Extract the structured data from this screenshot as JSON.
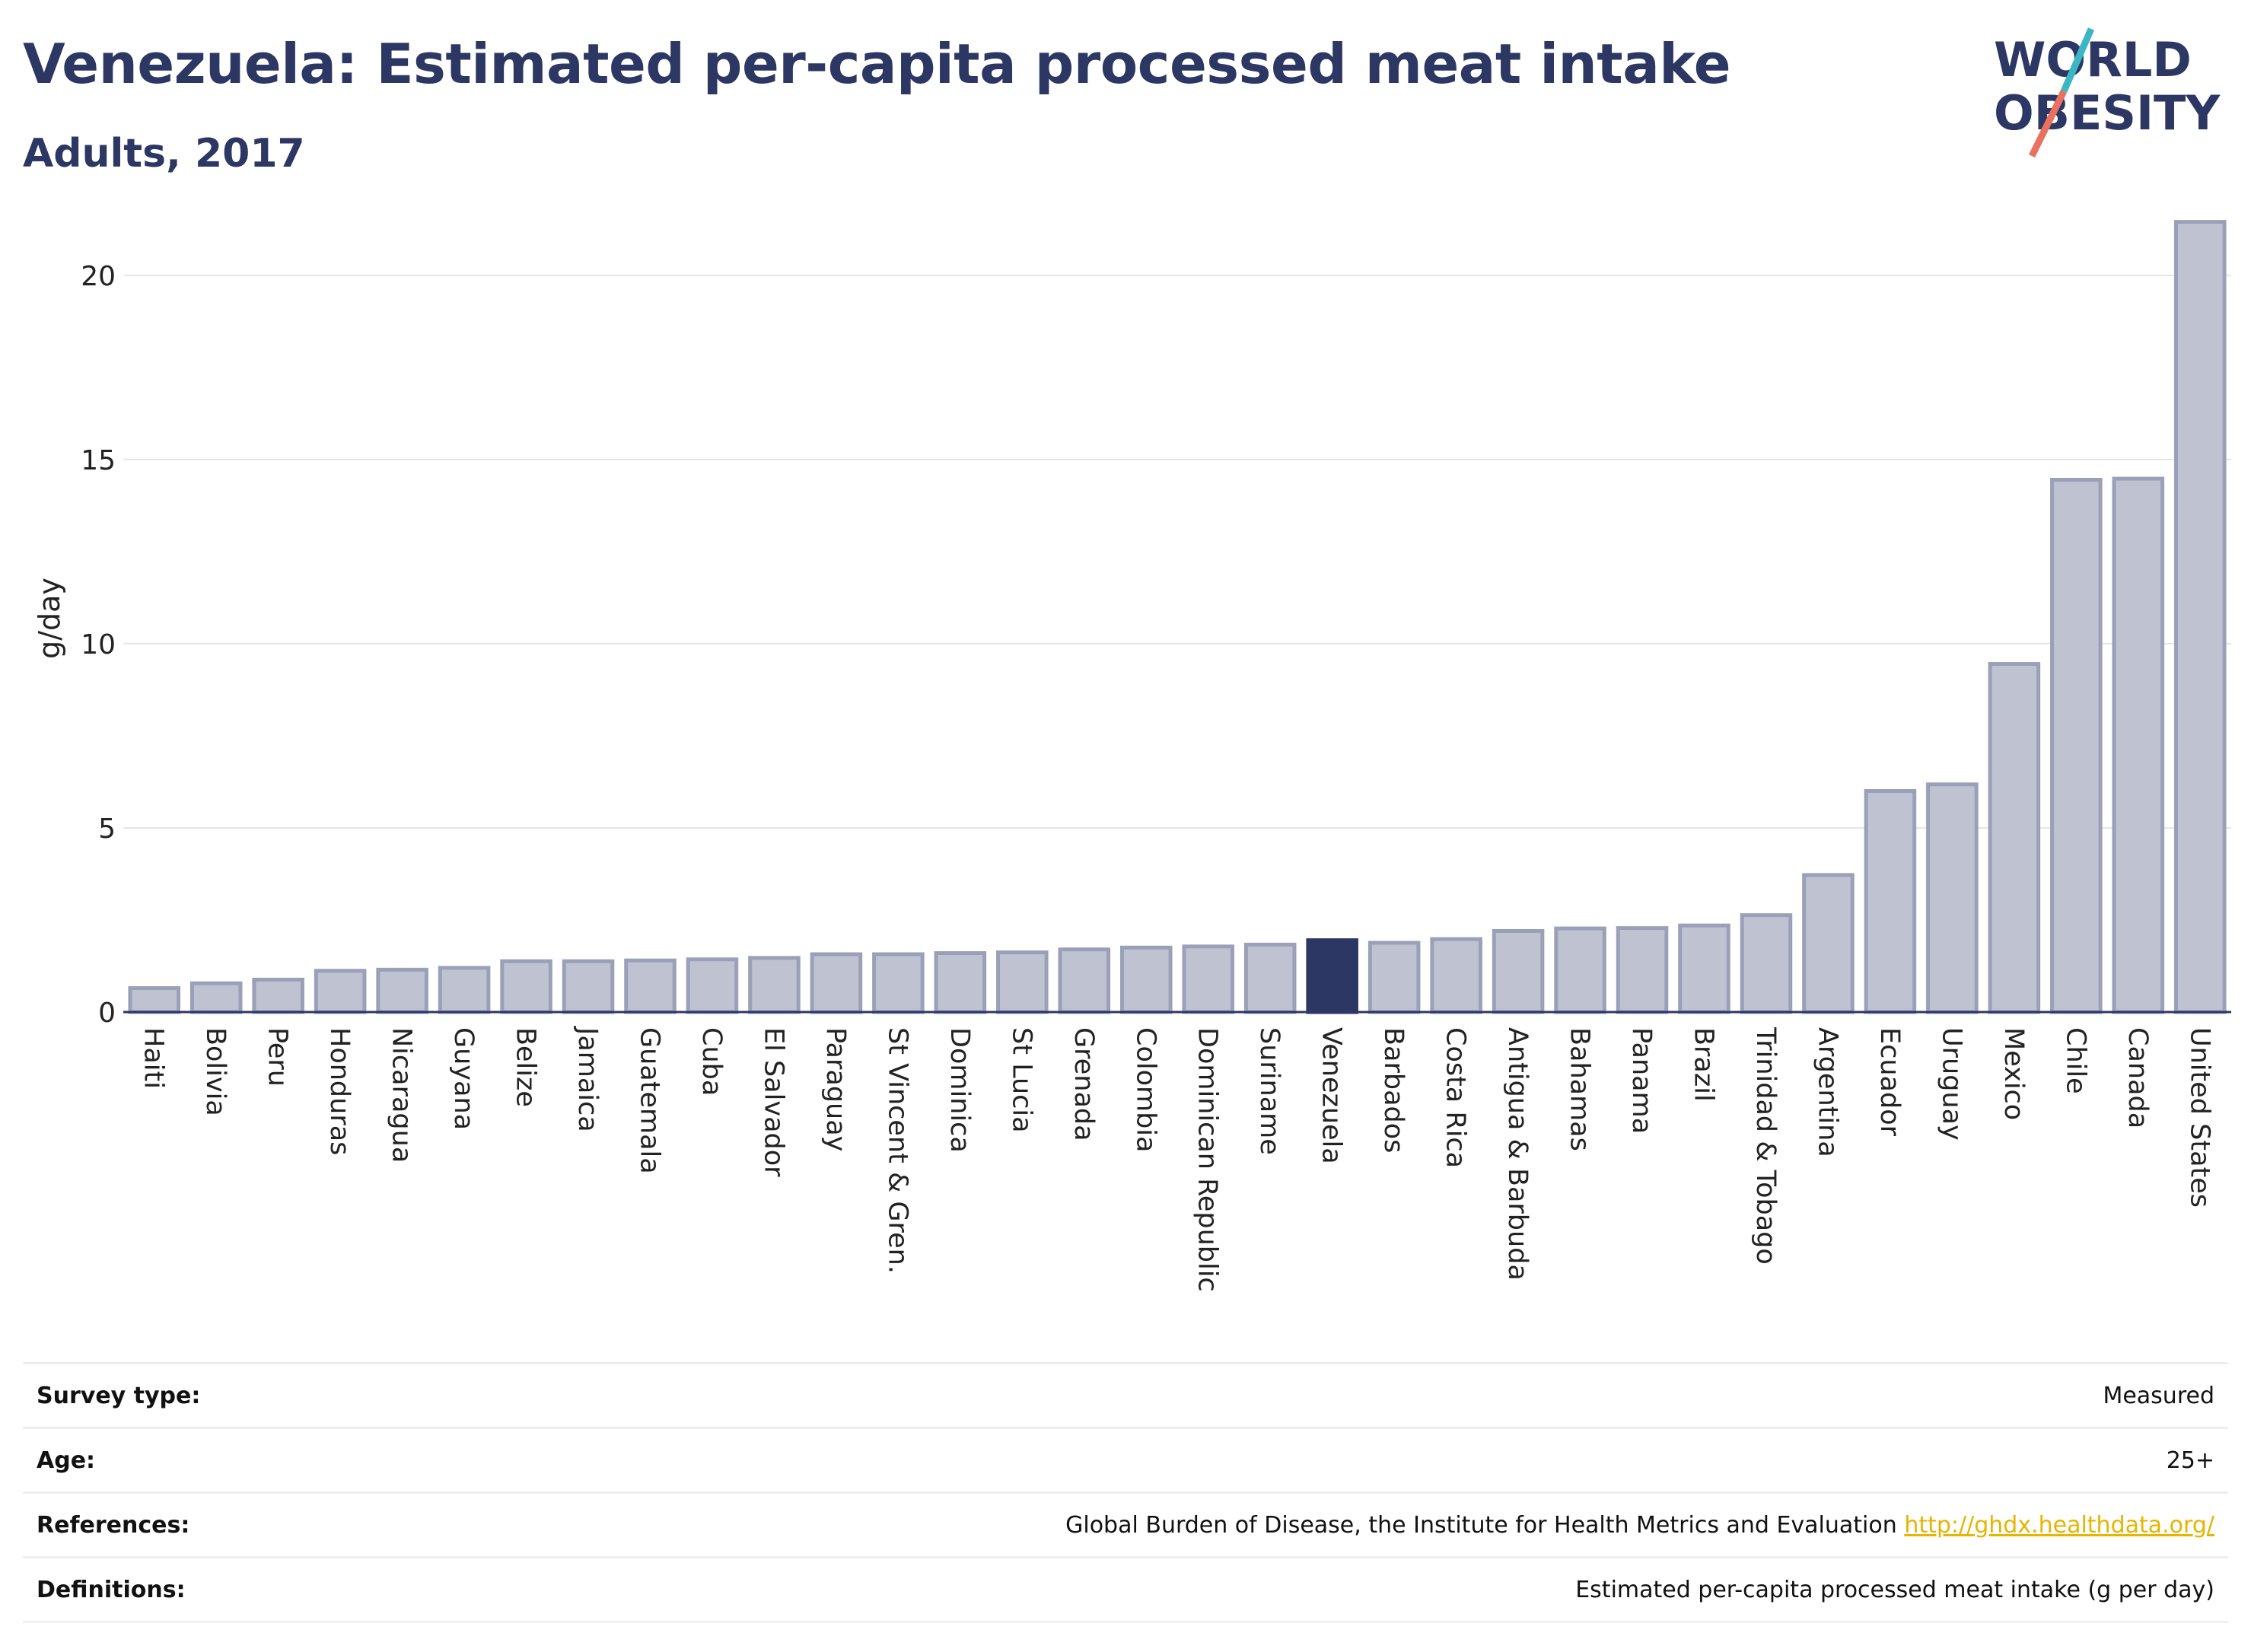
{
  "header": {
    "title": "Venezuela: Estimated per-capita processed meat intake",
    "subtitle": "Adults, 2017"
  },
  "logo": {
    "line1": "WORLD",
    "line2": "OBESITY"
  },
  "colors": {
    "highlight": "#2c3764",
    "bar_fill": "#bfc3d1",
    "bar_stroke": "#9aa0b8",
    "title": "#2c3764",
    "logo_teal": "#3ab7c2",
    "logo_coral": "#e8715f",
    "link": "#e7b400"
  },
  "chart_data": {
    "type": "bar",
    "ylabel": "g/day",
    "ylim": [
      0,
      22
    ],
    "yticks": [
      0,
      5,
      10,
      15,
      20
    ],
    "grid": true,
    "highlight": "Venezuela",
    "categories": [
      "Haiti",
      "Bolivia",
      "Peru",
      "Honduras",
      "Nicaragua",
      "Guyana",
      "Belize",
      "Jamaica",
      "Guatemala",
      "Cuba",
      "El Salvador",
      "Paraguay",
      "St Vincent & Gren.",
      "Dominica",
      "St Lucia",
      "Grenada",
      "Colombia",
      "Dominican Republic",
      "Suriname",
      "Venezuela",
      "Barbados",
      "Costa Rica",
      "Antigua & Barbuda",
      "Bahamas",
      "Panama",
      "Brazil",
      "Trinidad & Tobago",
      "Argentina",
      "Ecuador",
      "Uruguay",
      "Mexico",
      "Chile",
      "Canada",
      "United States"
    ],
    "values": [
      0.65,
      0.78,
      0.88,
      1.12,
      1.15,
      1.2,
      1.38,
      1.38,
      1.4,
      1.43,
      1.47,
      1.57,
      1.57,
      1.6,
      1.62,
      1.7,
      1.75,
      1.78,
      1.83,
      1.95,
      1.88,
      1.98,
      2.2,
      2.27,
      2.28,
      2.35,
      2.63,
      3.72,
      6.0,
      6.18,
      9.45,
      14.45,
      14.48,
      21.45
    ]
  },
  "meta": {
    "rows": [
      {
        "label": "Survey type:",
        "value": "Measured"
      },
      {
        "label": "Age:",
        "value": "25+"
      },
      {
        "label": "References:",
        "value": "Global Burden of Disease, the Institute for Health Metrics and Evaluation",
        "link": "http://ghdx.healthdata.org/"
      },
      {
        "label": "Definitions:",
        "value": "Estimated per-capita processed meat intake (g per day)"
      }
    ]
  }
}
